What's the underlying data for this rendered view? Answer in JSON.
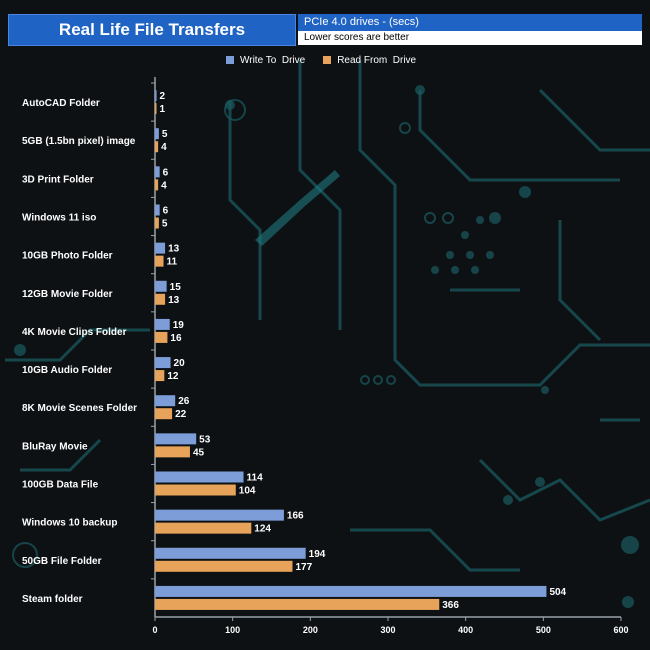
{
  "header": {
    "title": "Real Life File Transfers",
    "subtitle": "PCIe 4.0 drives - (secs)",
    "note": "Lower scores are better"
  },
  "colors": {
    "write": "#7d9dd8",
    "read": "#e7a35a",
    "title_bg": "#1f63c4",
    "background": "#0d1114",
    "circuit": "#1a5a60"
  },
  "chart_data": {
    "type": "bar",
    "orientation": "horizontal",
    "categories": [
      "AutoCAD Folder",
      "5GB (1.5bn pixel) image",
      "3D Print Folder",
      "Windows 11 iso",
      "10GB Photo Folder",
      "12GB Movie Folder",
      "4K Movie Clips Folder",
      "10GB Audio Folder",
      "8K Movie Scenes Folder",
      "BluRay Movie",
      "100GB Data File",
      "Windows 10 backup",
      "50GB File Folder",
      "Steam folder"
    ],
    "series": [
      {
        "name": "Write To  Drive",
        "values": [
          2,
          5,
          6,
          6,
          13,
          15,
          19,
          20,
          26,
          53,
          114,
          166,
          194,
          504
        ]
      },
      {
        "name": "Read From  Drive",
        "values": [
          1,
          4,
          4,
          5,
          11,
          13,
          16,
          12,
          22,
          45,
          104,
          124,
          177,
          366
        ]
      }
    ],
    "xlim": [
      0,
      600
    ],
    "xticks": [
      0,
      100,
      200,
      300,
      400,
      500,
      600
    ],
    "legend_position": "top",
    "grid": false
  }
}
